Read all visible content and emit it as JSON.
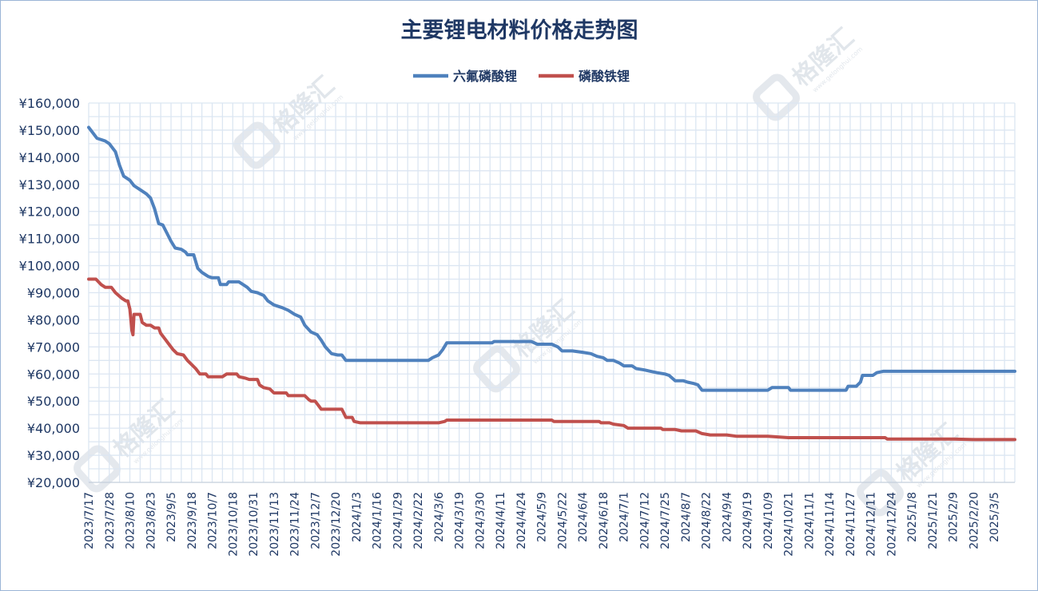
{
  "watermark": {
    "text": "格隆汇",
    "sub": "www.gelonghui.com"
  },
  "chart_data": {
    "type": "line",
    "title": "主要锂电材料价格走势图",
    "legend_position": "top-center",
    "grid": true,
    "ylim": [
      20000,
      160000
    ],
    "y_ticks": [
      "¥160,000",
      "¥150,000",
      "¥140,000",
      "¥130,000",
      "¥120,000",
      "¥110,000",
      "¥100,000",
      "¥90,000",
      "¥80,000",
      "¥70,000",
      "¥60,000",
      "¥50,000",
      "¥40,000",
      "¥30,000",
      "¥20,000"
    ],
    "x_ticks": [
      "2023/7/17",
      "2023/7/28",
      "2023/8/10",
      "2023/8/23",
      "2023/9/5",
      "2023/9/18",
      "2023/10/7",
      "2023/10/18",
      "2023/10/31",
      "2023/11/13",
      "2023/11/24",
      "2023/12/7",
      "2023/12/20",
      "2024/1/3",
      "2024/1/16",
      "2024/1/29",
      "2024/2/22",
      "2024/3/6",
      "2024/3/19",
      "2024/3/30",
      "2024/4/11",
      "2024/4/24",
      "2024/5/9",
      "2024/5/22",
      "2024/6/4",
      "2024/6/18",
      "2024/7/1",
      "2024/7/12",
      "2024/7/25",
      "2024/8/7",
      "2024/8/22",
      "2024/9/4",
      "2024/9/19",
      "2024/10/9",
      "2024/10/21",
      "2024/11/1",
      "2024/11/14",
      "2024/11/27",
      "2024/12/11",
      "2024/12/24",
      "2025/1/8",
      "2025/1/21",
      "2025/2/9",
      "2025/2/20",
      "2025/3/5"
    ],
    "series": [
      {
        "name": "六氟磷酸锂",
        "color": "#4f81bd",
        "points": [
          [
            0,
            151000
          ],
          [
            0.4,
            147000
          ],
          [
            0.8,
            146000
          ],
          [
            1.0,
            145000
          ],
          [
            1.3,
            142000
          ],
          [
            1.5,
            137000
          ],
          [
            1.7,
            133000
          ],
          [
            2.0,
            131500
          ],
          [
            2.2,
            129500
          ],
          [
            2.5,
            128000
          ],
          [
            2.8,
            126500
          ],
          [
            3.0,
            125000
          ],
          [
            3.2,
            121000
          ],
          [
            3.4,
            115500
          ],
          [
            3.6,
            115000
          ],
          [
            3.8,
            112000
          ],
          [
            4.0,
            109000
          ],
          [
            4.2,
            106500
          ],
          [
            4.5,
            106000
          ],
          [
            4.7,
            105000
          ],
          [
            4.8,
            104000
          ],
          [
            5.1,
            104000
          ],
          [
            5.3,
            99000
          ],
          [
            5.5,
            97500
          ],
          [
            5.8,
            96000
          ],
          [
            6.0,
            95500
          ],
          [
            6.3,
            95500
          ],
          [
            6.4,
            93000
          ],
          [
            6.7,
            93000
          ],
          [
            6.8,
            94000
          ],
          [
            7.3,
            94000
          ],
          [
            7.5,
            93000
          ],
          [
            7.7,
            92000
          ],
          [
            7.9,
            90500
          ],
          [
            8.2,
            90000
          ],
          [
            8.5,
            89000
          ],
          [
            8.7,
            87000
          ],
          [
            9.0,
            85500
          ],
          [
            9.4,
            84500
          ],
          [
            9.7,
            83500
          ],
          [
            10.0,
            82000
          ],
          [
            10.3,
            81000
          ],
          [
            10.5,
            78000
          ],
          [
            10.8,
            75500
          ],
          [
            11.1,
            74500
          ],
          [
            11.3,
            72500
          ],
          [
            11.5,
            70000
          ],
          [
            11.8,
            67500
          ],
          [
            12.1,
            67000
          ],
          [
            12.3,
            67000
          ],
          [
            12.5,
            65000
          ],
          [
            13.0,
            65000
          ],
          [
            14.0,
            65000
          ],
          [
            15.0,
            65000
          ],
          [
            16.0,
            65000
          ],
          [
            16.5,
            65000
          ],
          [
            16.7,
            66000
          ],
          [
            17.0,
            67000
          ],
          [
            17.2,
            69000
          ],
          [
            17.4,
            71500
          ],
          [
            18.0,
            71500
          ],
          [
            19.0,
            71500
          ],
          [
            19.6,
            71500
          ],
          [
            19.7,
            72000
          ],
          [
            20.5,
            72000
          ],
          [
            21.0,
            72000
          ],
          [
            21.5,
            72000
          ],
          [
            21.8,
            71000
          ],
          [
            22.5,
            71000
          ],
          [
            22.8,
            70000
          ],
          [
            23.0,
            68500
          ],
          [
            23.5,
            68500
          ],
          [
            24.0,
            68000
          ],
          [
            24.4,
            67500
          ],
          [
            24.7,
            66500
          ],
          [
            25.0,
            66000
          ],
          [
            25.2,
            65000
          ],
          [
            25.5,
            65000
          ],
          [
            25.8,
            64000
          ],
          [
            26.0,
            63000
          ],
          [
            26.4,
            63000
          ],
          [
            26.6,
            62000
          ],
          [
            27.0,
            61500
          ],
          [
            27.3,
            61000
          ],
          [
            27.6,
            60500
          ],
          [
            28.0,
            60000
          ],
          [
            28.2,
            59500
          ],
          [
            28.5,
            57500
          ],
          [
            28.9,
            57500
          ],
          [
            29.1,
            57000
          ],
          [
            29.4,
            56500
          ],
          [
            29.6,
            56000
          ],
          [
            29.8,
            54000
          ],
          [
            30.5,
            54000
          ],
          [
            31.0,
            54000
          ],
          [
            32.0,
            54000
          ],
          [
            33.0,
            54000
          ],
          [
            33.2,
            55000
          ],
          [
            34.0,
            55000
          ],
          [
            34.1,
            54000
          ],
          [
            35.0,
            54000
          ],
          [
            36.0,
            54000
          ],
          [
            36.8,
            54000
          ],
          [
            36.9,
            55500
          ],
          [
            37.3,
            55500
          ],
          [
            37.5,
            57000
          ],
          [
            37.6,
            59500
          ],
          [
            38.1,
            59500
          ],
          [
            38.3,
            60500
          ],
          [
            38.6,
            61000
          ],
          [
            39.0,
            61000
          ],
          [
            40.0,
            61000
          ],
          [
            41.0,
            61000
          ],
          [
            42.0,
            61000
          ],
          [
            43.0,
            61000
          ],
          [
            44.0,
            61000
          ],
          [
            45.0,
            61000
          ]
        ]
      },
      {
        "name": "磷酸铁锂",
        "color": "#c0504d",
        "points": [
          [
            0,
            95000
          ],
          [
            0.35,
            95000
          ],
          [
            0.6,
            93000
          ],
          [
            0.8,
            92000
          ],
          [
            1.1,
            92000
          ],
          [
            1.3,
            90000
          ],
          [
            1.6,
            88000
          ],
          [
            1.8,
            87000
          ],
          [
            1.9,
            87000
          ],
          [
            2.0,
            84000
          ],
          [
            2.1,
            76000
          ],
          [
            2.15,
            74500
          ],
          [
            2.2,
            82000
          ],
          [
            2.5,
            82000
          ],
          [
            2.6,
            79000
          ],
          [
            2.8,
            78000
          ],
          [
            3.0,
            78000
          ],
          [
            3.2,
            77000
          ],
          [
            3.4,
            77000
          ],
          [
            3.5,
            75000
          ],
          [
            3.7,
            73000
          ],
          [
            3.9,
            71000
          ],
          [
            4.1,
            69000
          ],
          [
            4.3,
            67500
          ],
          [
            4.6,
            67000
          ],
          [
            4.8,
            65000
          ],
          [
            5.0,
            63500
          ],
          [
            5.2,
            62000
          ],
          [
            5.4,
            60000
          ],
          [
            5.7,
            60000
          ],
          [
            5.8,
            59000
          ],
          [
            6.1,
            59000
          ],
          [
            6.5,
            59000
          ],
          [
            6.7,
            60000
          ],
          [
            7.2,
            60000
          ],
          [
            7.3,
            59000
          ],
          [
            7.6,
            58500
          ],
          [
            7.8,
            58000
          ],
          [
            8.2,
            58000
          ],
          [
            8.3,
            56000
          ],
          [
            8.5,
            55000
          ],
          [
            8.8,
            54500
          ],
          [
            9.0,
            53000
          ],
          [
            9.6,
            53000
          ],
          [
            9.7,
            52000
          ],
          [
            10.0,
            52000
          ],
          [
            10.5,
            52000
          ],
          [
            10.7,
            50500
          ],
          [
            10.8,
            50000
          ],
          [
            11.0,
            50000
          ],
          [
            11.2,
            48000
          ],
          [
            11.3,
            47000
          ],
          [
            12.0,
            47000
          ],
          [
            12.3,
            47000
          ],
          [
            12.5,
            44000
          ],
          [
            12.8,
            44000
          ],
          [
            12.9,
            42500
          ],
          [
            13.2,
            42000
          ],
          [
            14.0,
            42000
          ],
          [
            15.0,
            42000
          ],
          [
            16.0,
            42000
          ],
          [
            17.0,
            42000
          ],
          [
            17.3,
            42500
          ],
          [
            17.4,
            43000
          ],
          [
            18.0,
            43000
          ],
          [
            19.0,
            43000
          ],
          [
            20.0,
            43000
          ],
          [
            21.0,
            43000
          ],
          [
            22.0,
            43000
          ],
          [
            22.5,
            43000
          ],
          [
            22.6,
            42500
          ],
          [
            23.5,
            42500
          ],
          [
            24.0,
            42500
          ],
          [
            24.8,
            42500
          ],
          [
            24.9,
            42000
          ],
          [
            25.3,
            42000
          ],
          [
            25.5,
            41500
          ],
          [
            26.0,
            41000
          ],
          [
            26.2,
            40000
          ],
          [
            27.0,
            40000
          ],
          [
            27.8,
            40000
          ],
          [
            27.9,
            39500
          ],
          [
            28.5,
            39500
          ],
          [
            28.8,
            39000
          ],
          [
            29.5,
            39000
          ],
          [
            29.8,
            38000
          ],
          [
            30.2,
            37500
          ],
          [
            31.0,
            37500
          ],
          [
            31.5,
            37000
          ],
          [
            32.0,
            37000
          ],
          [
            33.0,
            37000
          ],
          [
            34.0,
            36500
          ],
          [
            35.0,
            36500
          ],
          [
            36.0,
            36500
          ],
          [
            37.0,
            36500
          ],
          [
            38.0,
            36500
          ],
          [
            38.7,
            36500
          ],
          [
            38.8,
            36000
          ],
          [
            40.0,
            36000
          ],
          [
            41.0,
            36000
          ],
          [
            42.0,
            36000
          ],
          [
            43.0,
            35800
          ],
          [
            44.0,
            35800
          ],
          [
            45.0,
            35800
          ]
        ]
      }
    ]
  }
}
